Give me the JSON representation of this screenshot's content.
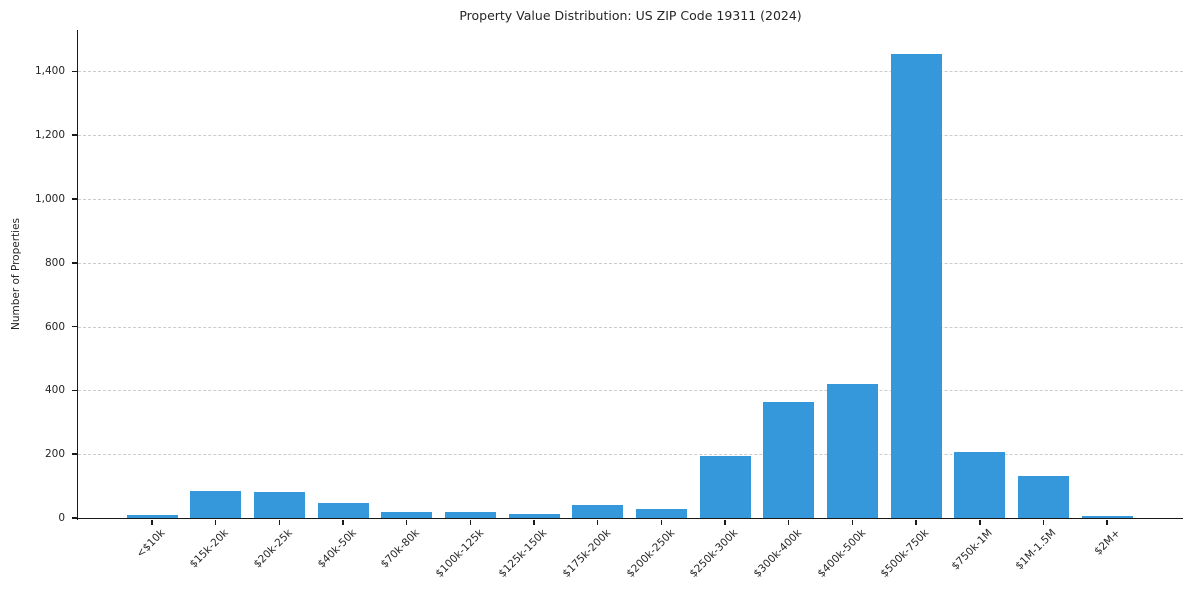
{
  "chart_data": {
    "type": "bar",
    "title": "Property Value Distribution: US ZIP Code 19311 (2024)",
    "xlabel": "",
    "ylabel": "Number of Properties",
    "categories": [
      "<$10k",
      "$15k-20k",
      "$20k-25k",
      "$40k-50k",
      "$70k-80k",
      "$100k-125k",
      "$125k-150k",
      "$175k-200k",
      "$200k-250k",
      "$250k-300k",
      "$300k-400k",
      "$400k-500k",
      "$500k-750k",
      "$750k-1M",
      "$1M-1.5M",
      "$2M+"
    ],
    "values": [
      10,
      85,
      82,
      48,
      20,
      18,
      14,
      40,
      29,
      193,
      363,
      420,
      1455,
      207,
      132,
      5
    ],
    "ylim": [
      0,
      1530
    ],
    "yticks": {
      "values": [
        0,
        200,
        400,
        600,
        800,
        1000,
        1200,
        1400
      ],
      "labels": [
        "0",
        "200",
        "400",
        "600",
        "800",
        "1,000",
        "1,200",
        "1,400"
      ]
    },
    "legend": "none",
    "grid": "horizontal-dashed",
    "bar_color": "#3498db",
    "grid_color": "#cccccc",
    "text_color": "#262626",
    "background_color": "#ffffff"
  }
}
